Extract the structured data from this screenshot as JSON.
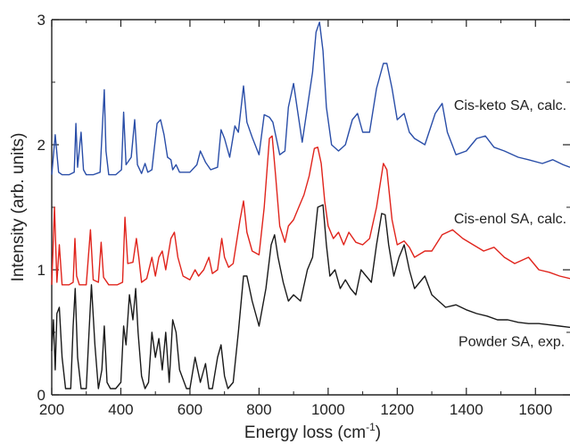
{
  "chart_data": {
    "type": "line",
    "title": "",
    "xlabel": "Energy loss (cm",
    "xlabel_sup": "-1",
    "xlabel_close": ")",
    "ylabel": "Intensity (arb. units)",
    "xlim": [
      200,
      1700
    ],
    "ylim": [
      0,
      3
    ],
    "x_ticks": [
      200,
      400,
      600,
      800,
      1000,
      1200,
      1400,
      1600
    ],
    "y_ticks": [
      0,
      1,
      2,
      3
    ],
    "grid": false,
    "series": [
      {
        "name": "Cis-keto SA, calc.",
        "color": "#2a4ea8",
        "label_anchor": [
          1690,
          2.28
        ],
        "x": [
          200,
          210,
          220,
          230,
          250,
          265,
          270,
          275,
          285,
          292,
          300,
          320,
          340,
          352,
          357,
          365,
          385,
          402,
          408,
          415,
          430,
          440,
          448,
          460,
          470,
          478,
          490,
          505,
          515,
          525,
          535,
          545,
          550,
          560,
          570,
          585,
          600,
          620,
          630,
          645,
          660,
          680,
          690,
          700,
          715,
          730,
          740,
          755,
          765,
          780,
          800,
          815,
          830,
          840,
          850,
          860,
          875,
          885,
          900,
          910,
          925,
          940,
          955,
          965,
          975,
          985,
          995,
          1010,
          1030,
          1050,
          1070,
          1085,
          1100,
          1120,
          1140,
          1160,
          1170,
          1185,
          1200,
          1220,
          1235,
          1250,
          1280,
          1310,
          1330,
          1345,
          1370,
          1400,
          1430,
          1455,
          1480,
          1510,
          1550,
          1580,
          1620,
          1650,
          1680,
          1700
        ],
        "y": [
          1.76,
          2.08,
          1.78,
          1.76,
          1.76,
          1.78,
          2.17,
          1.82,
          2.1,
          1.8,
          1.76,
          1.76,
          1.78,
          2.44,
          1.95,
          1.76,
          1.76,
          1.8,
          2.26,
          1.84,
          1.9,
          2.2,
          1.84,
          1.77,
          1.85,
          1.78,
          1.8,
          2.17,
          2.2,
          2.08,
          1.9,
          1.88,
          1.8,
          1.84,
          1.78,
          1.78,
          1.78,
          1.84,
          1.95,
          1.86,
          1.8,
          1.82,
          2.12,
          2.05,
          1.9,
          2.15,
          2.1,
          2.47,
          2.18,
          2.06,
          1.92,
          2.24,
          2.22,
          2.18,
          2.05,
          1.92,
          1.95,
          2.3,
          2.49,
          2.3,
          2.02,
          2.3,
          2.58,
          2.9,
          2.98,
          2.75,
          2.3,
          2.0,
          1.95,
          2.0,
          2.2,
          2.25,
          2.1,
          2.1,
          2.45,
          2.65,
          2.65,
          2.45,
          2.2,
          2.25,
          2.1,
          2.05,
          2.0,
          2.25,
          2.33,
          2.1,
          1.92,
          1.95,
          2.05,
          2.07,
          1.98,
          1.95,
          1.9,
          1.88,
          1.85,
          1.88,
          1.84,
          1.82
        ]
      },
      {
        "name": "Cis-enol SA, calc.",
        "color": "#e0241c",
        "label_anchor": [
          1690,
          1.37
        ],
        "x": [
          200,
          208,
          215,
          222,
          230,
          250,
          262,
          267,
          272,
          280,
          300,
          312,
          320,
          335,
          343,
          350,
          365,
          390,
          405,
          412,
          420,
          435,
          445,
          452,
          460,
          475,
          490,
          500,
          510,
          520,
          530,
          545,
          555,
          565,
          580,
          600,
          615,
          625,
          640,
          655,
          665,
          680,
          692,
          700,
          712,
          725,
          745,
          755,
          765,
          780,
          800,
          815,
          830,
          838,
          848,
          860,
          875,
          885,
          900,
          915,
          930,
          945,
          960,
          970,
          980,
          990,
          1000,
          1015,
          1030,
          1045,
          1060,
          1080,
          1100,
          1120,
          1140,
          1160,
          1170,
          1185,
          1200,
          1220,
          1235,
          1250,
          1280,
          1300,
          1330,
          1360,
          1390,
          1420,
          1450,
          1480,
          1510,
          1540,
          1580,
          1610,
          1640,
          1670,
          1700
        ],
        "y": [
          0.88,
          1.5,
          0.9,
          1.2,
          0.88,
          0.88,
          0.9,
          1.25,
          0.95,
          0.88,
          0.88,
          1.32,
          0.92,
          0.9,
          1.22,
          0.94,
          0.88,
          0.88,
          0.9,
          1.42,
          1.05,
          1.06,
          1.25,
          1.1,
          0.9,
          0.93,
          1.1,
          0.95,
          1.1,
          1.15,
          1.0,
          1.25,
          1.3,
          1.1,
          0.95,
          0.92,
          1.0,
          0.95,
          1.0,
          1.1,
          0.97,
          1.0,
          1.25,
          1.1,
          1.02,
          1.05,
          1.4,
          1.55,
          1.3,
          1.15,
          1.12,
          1.5,
          2.05,
          2.07,
          1.75,
          1.35,
          1.22,
          1.35,
          1.4,
          1.5,
          1.6,
          1.75,
          1.97,
          1.98,
          1.85,
          1.55,
          1.35,
          1.25,
          1.3,
          1.2,
          1.3,
          1.22,
          1.2,
          1.25,
          1.5,
          1.85,
          1.8,
          1.4,
          1.2,
          1.23,
          1.18,
          1.1,
          1.15,
          1.15,
          1.28,
          1.32,
          1.25,
          1.2,
          1.15,
          1.18,
          1.1,
          1.05,
          1.1,
          1.0,
          0.98,
          0.95,
          0.93
        ]
      },
      {
        "name": "Powder SA, exp.",
        "color": "#1a1a1a",
        "label_anchor": [
          1685,
          0.39
        ],
        "x": [
          200,
          205,
          210,
          215,
          222,
          230,
          240,
          255,
          262,
          268,
          275,
          285,
          300,
          308,
          315,
          325,
          335,
          345,
          352,
          360,
          370,
          385,
          400,
          408,
          415,
          425,
          435,
          443,
          450,
          460,
          470,
          480,
          490,
          500,
          510,
          520,
          530,
          540,
          550,
          560,
          570,
          590,
          600,
          615,
          630,
          645,
          655,
          665,
          680,
          690,
          700,
          710,
          725,
          740,
          755,
          765,
          780,
          800,
          820,
          835,
          845,
          855,
          870,
          885,
          900,
          920,
          940,
          955,
          970,
          985,
          995,
          1005,
          1020,
          1035,
          1050,
          1065,
          1080,
          1095,
          1110,
          1125,
          1140,
          1155,
          1165,
          1175,
          1190,
          1205,
          1220,
          1235,
          1250,
          1265,
          1280,
          1300,
          1320,
          1340,
          1370,
          1400,
          1430,
          1460,
          1490,
          1520,
          1550,
          1580,
          1610,
          1640,
          1670,
          1700
        ],
        "y": [
          0.35,
          0.6,
          0.2,
          0.65,
          0.7,
          0.3,
          0.05,
          0.05,
          0.55,
          0.85,
          0.3,
          0.05,
          0.05,
          0.5,
          0.88,
          0.4,
          0.05,
          0.2,
          0.55,
          0.1,
          0.05,
          0.05,
          0.1,
          0.55,
          0.4,
          0.8,
          0.6,
          0.85,
          0.5,
          0.15,
          0.05,
          0.1,
          0.5,
          0.3,
          0.45,
          0.2,
          0.5,
          0.1,
          0.6,
          0.5,
          0.2,
          0.05,
          0.05,
          0.3,
          0.1,
          0.25,
          0.05,
          0.05,
          0.3,
          0.4,
          0.15,
          0.05,
          0.1,
          0.5,
          0.95,
          0.95,
          0.75,
          0.55,
          0.85,
          1.2,
          1.28,
          1.1,
          0.9,
          0.75,
          0.8,
          0.75,
          1.0,
          1.1,
          1.5,
          1.52,
          1.2,
          0.95,
          1.0,
          0.85,
          0.92,
          0.85,
          0.8,
          1.0,
          0.95,
          0.9,
          1.2,
          1.45,
          1.44,
          1.2,
          0.95,
          1.1,
          1.2,
          1.0,
          0.85,
          0.9,
          0.95,
          0.8,
          0.75,
          0.7,
          0.72,
          0.68,
          0.65,
          0.63,
          0.6,
          0.6,
          0.58,
          0.57,
          0.57,
          0.56,
          0.55,
          0.54
        ]
      }
    ]
  }
}
